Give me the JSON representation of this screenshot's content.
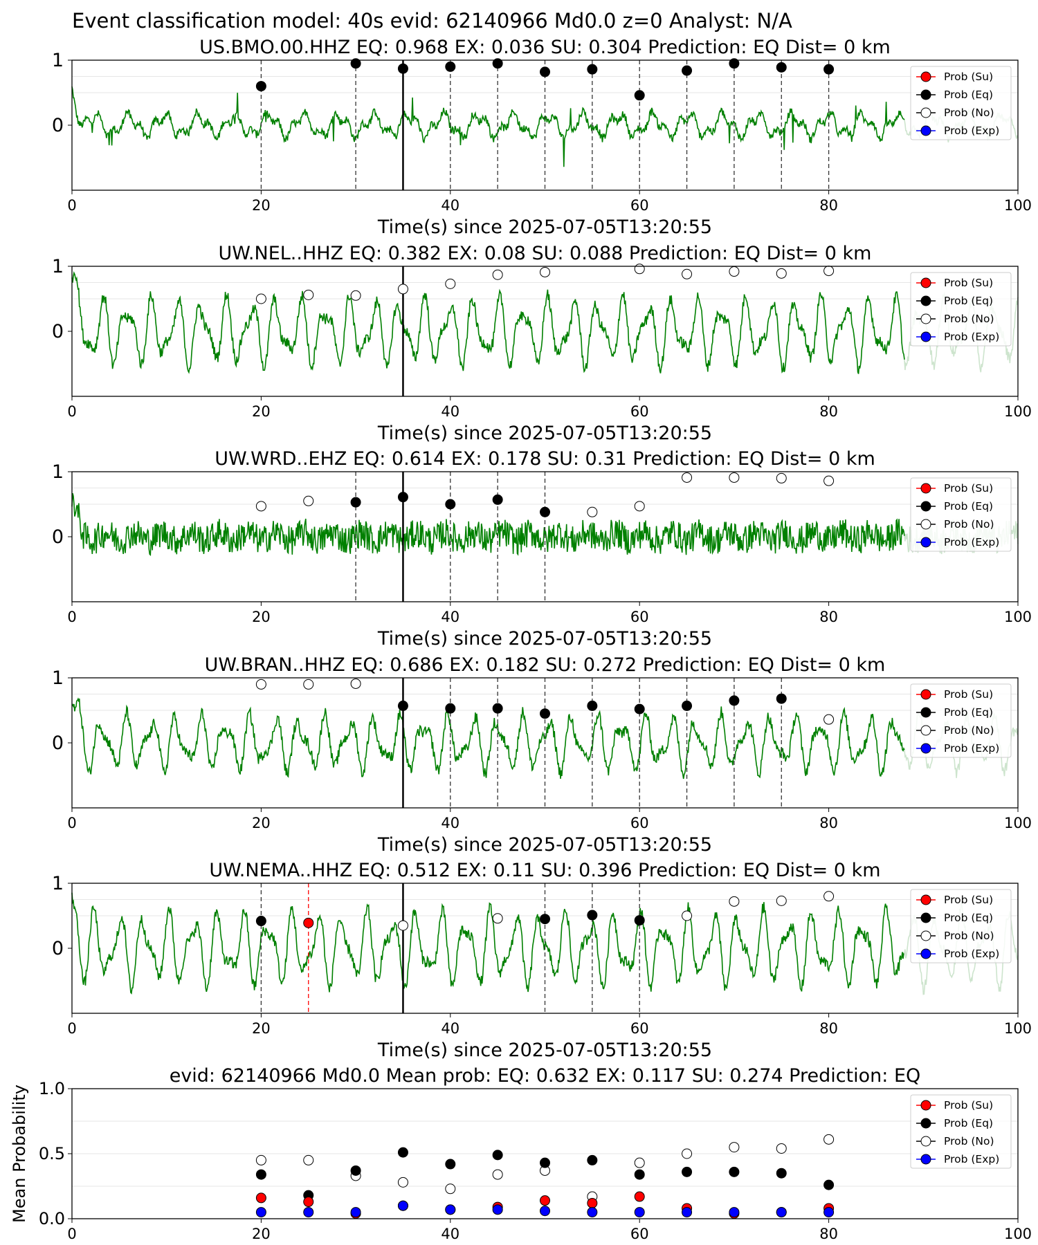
{
  "suptitle": "Event classification model: 40s evid: 62140966 Md0.0 z=0 Analyst: N/A",
  "colors": {
    "waveform": "#008000",
    "waveform_faded": "#cde4cd",
    "su": "#ff0000",
    "eq": "#000000",
    "exp": "#0000ff",
    "no_fill": "#ffffff"
  },
  "legend": [
    "Prob (Su)",
    "Prob (Eq)",
    "Prob (No)",
    "Prob (Exp)"
  ],
  "chart_data": [
    {
      "type": "line",
      "title": "US.BMO.00.HHZ   EQ: 0.968  EX: 0.036  SU: 0.304   Prediction: EQ    Dist= 0 km",
      "xlabel": "Time(s) since 2025-07-05T13:20:55",
      "xlim": [
        0,
        100
      ],
      "xticks": [
        "0",
        "20",
        "40",
        "60",
        "80",
        "100"
      ],
      "yticks": [
        "0",
        "1"
      ],
      "origin_line": 35,
      "waveform": {
        "amp": 0.28,
        "style": "spiky"
      },
      "vlines": [
        {
          "x": 20,
          "c": "eq"
        },
        {
          "x": 30,
          "c": "eq"
        },
        {
          "x": 40,
          "c": "eq"
        },
        {
          "x": 45,
          "c": "eq"
        },
        {
          "x": 50,
          "c": "eq"
        },
        {
          "x": 55,
          "c": "eq"
        },
        {
          "x": 60,
          "c": "eq"
        },
        {
          "x": 65,
          "c": "eq"
        },
        {
          "x": 70,
          "c": "eq"
        },
        {
          "x": 75,
          "c": "eq"
        },
        {
          "x": 80,
          "c": "eq"
        }
      ],
      "points": [
        {
          "x": 20,
          "y": 0.6,
          "c": "eq"
        },
        {
          "x": 30,
          "y": 0.95,
          "c": "eq"
        },
        {
          "x": 35,
          "y": 0.87,
          "c": "eq"
        },
        {
          "x": 40,
          "y": 0.9,
          "c": "eq"
        },
        {
          "x": 45,
          "y": 0.95,
          "c": "eq"
        },
        {
          "x": 50,
          "y": 0.82,
          "c": "eq"
        },
        {
          "x": 55,
          "y": 0.86,
          "c": "eq"
        },
        {
          "x": 60,
          "y": 0.46,
          "c": "eq"
        },
        {
          "x": 65,
          "y": 0.84,
          "c": "eq"
        },
        {
          "x": 70,
          "y": 0.95,
          "c": "eq"
        },
        {
          "x": 75,
          "y": 0.89,
          "c": "eq"
        },
        {
          "x": 80,
          "y": 0.86,
          "c": "eq"
        }
      ]
    },
    {
      "type": "line",
      "title": "UW.NEL..HHZ   EQ: 0.382  EX: 0.08  SU: 0.088   Prediction: EQ    Dist= 0 km",
      "xlabel": "Time(s) since 2025-07-05T13:20:55",
      "xlim": [
        0,
        100
      ],
      "xticks": [
        "0",
        "20",
        "40",
        "60",
        "80",
        "100"
      ],
      "yticks": [
        "0",
        "1"
      ],
      "origin_line": 35,
      "waveform": {
        "amp": 0.55,
        "style": "oscillating"
      },
      "vlines": [],
      "points": [
        {
          "x": 20,
          "y": 0.5,
          "c": "no"
        },
        {
          "x": 25,
          "y": 0.56,
          "c": "no"
        },
        {
          "x": 30,
          "y": 0.55,
          "c": "no"
        },
        {
          "x": 35,
          "y": 0.65,
          "c": "no"
        },
        {
          "x": 40,
          "y": 0.73,
          "c": "no"
        },
        {
          "x": 45,
          "y": 0.87,
          "c": "no"
        },
        {
          "x": 50,
          "y": 0.91,
          "c": "no"
        },
        {
          "x": 60,
          "y": 0.96,
          "c": "no"
        },
        {
          "x": 65,
          "y": 0.88,
          "c": "no"
        },
        {
          "x": 70,
          "y": 0.92,
          "c": "no"
        },
        {
          "x": 75,
          "y": 0.89,
          "c": "no"
        },
        {
          "x": 80,
          "y": 0.93,
          "c": "no"
        }
      ]
    },
    {
      "type": "line",
      "title": "UW.WRD..EHZ   EQ: 0.614  EX: 0.178  SU: 0.31   Prediction: EQ    Dist= 0 km",
      "xlabel": "Time(s) since 2025-07-05T13:20:55",
      "xlim": [
        0,
        100
      ],
      "xticks": [
        "0",
        "20",
        "40",
        "60",
        "80",
        "100"
      ],
      "yticks": [
        "0",
        "1"
      ],
      "origin_line": 35,
      "waveform": {
        "amp": 0.3,
        "style": "noisy"
      },
      "vlines": [
        {
          "x": 30,
          "c": "eq"
        },
        {
          "x": 40,
          "c": "eq"
        },
        {
          "x": 45,
          "c": "eq"
        },
        {
          "x": 50,
          "c": "eq"
        }
      ],
      "points": [
        {
          "x": 20,
          "y": 0.47,
          "c": "no"
        },
        {
          "x": 25,
          "y": 0.55,
          "c": "no"
        },
        {
          "x": 30,
          "y": 0.53,
          "c": "eq"
        },
        {
          "x": 35,
          "y": 0.61,
          "c": "eq"
        },
        {
          "x": 40,
          "y": 0.5,
          "c": "eq"
        },
        {
          "x": 45,
          "y": 0.57,
          "c": "eq"
        },
        {
          "x": 50,
          "y": 0.38,
          "c": "eq"
        },
        {
          "x": 55,
          "y": 0.38,
          "c": "no"
        },
        {
          "x": 60,
          "y": 0.47,
          "c": "no"
        },
        {
          "x": 65,
          "y": 0.91,
          "c": "no"
        },
        {
          "x": 70,
          "y": 0.91,
          "c": "no"
        },
        {
          "x": 75,
          "y": 0.9,
          "c": "no"
        },
        {
          "x": 80,
          "y": 0.86,
          "c": "no"
        }
      ]
    },
    {
      "type": "line",
      "title": "UW.BRAN..HHZ   EQ: 0.686  EX: 0.182  SU: 0.272   Prediction: EQ    Dist= 0 km",
      "xlabel": "Time(s) since 2025-07-05T13:20:55",
      "xlim": [
        0,
        100
      ],
      "xticks": [
        "0",
        "20",
        "40",
        "60",
        "80",
        "100"
      ],
      "yticks": [
        "0",
        "1"
      ],
      "origin_line": 35,
      "waveform": {
        "amp": 0.45,
        "style": "oscillating"
      },
      "vlines": [
        {
          "x": 40,
          "c": "eq"
        },
        {
          "x": 45,
          "c": "eq"
        },
        {
          "x": 50,
          "c": "eq"
        },
        {
          "x": 55,
          "c": "eq"
        },
        {
          "x": 60,
          "c": "eq"
        },
        {
          "x": 65,
          "c": "eq"
        },
        {
          "x": 70,
          "c": "eq"
        },
        {
          "x": 75,
          "c": "eq"
        }
      ],
      "points": [
        {
          "x": 20,
          "y": 0.9,
          "c": "no"
        },
        {
          "x": 25,
          "y": 0.9,
          "c": "no"
        },
        {
          "x": 30,
          "y": 0.91,
          "c": "no"
        },
        {
          "x": 35,
          "y": 0.57,
          "c": "eq"
        },
        {
          "x": 40,
          "y": 0.53,
          "c": "eq"
        },
        {
          "x": 45,
          "y": 0.53,
          "c": "eq"
        },
        {
          "x": 50,
          "y": 0.45,
          "c": "eq"
        },
        {
          "x": 55,
          "y": 0.57,
          "c": "eq"
        },
        {
          "x": 60,
          "y": 0.52,
          "c": "eq"
        },
        {
          "x": 65,
          "y": 0.57,
          "c": "eq"
        },
        {
          "x": 70,
          "y": 0.65,
          "c": "eq"
        },
        {
          "x": 75,
          "y": 0.68,
          "c": "eq"
        },
        {
          "x": 80,
          "y": 0.36,
          "c": "no"
        }
      ]
    },
    {
      "type": "line",
      "title": "UW.NEMA..HHZ   EQ: 0.512  EX: 0.11  SU: 0.396   Prediction: EQ    Dist= 0 km",
      "xlabel": "Time(s) since 2025-07-05T13:20:55",
      "xlim": [
        0,
        100
      ],
      "xticks": [
        "0",
        "20",
        "40",
        "60",
        "80",
        "100"
      ],
      "yticks": [
        "0",
        "1"
      ],
      "origin_line": 35,
      "waveform": {
        "amp": 0.6,
        "style": "oscillating"
      },
      "vlines": [
        {
          "x": 20,
          "c": "eq"
        },
        {
          "x": 25,
          "c": "su"
        },
        {
          "x": 50,
          "c": "eq"
        },
        {
          "x": 55,
          "c": "eq"
        },
        {
          "x": 60,
          "c": "eq"
        }
      ],
      "points": [
        {
          "x": 20,
          "y": 0.42,
          "c": "eq"
        },
        {
          "x": 25,
          "y": 0.39,
          "c": "su"
        },
        {
          "x": 35,
          "y": 0.35,
          "c": "no"
        },
        {
          "x": 45,
          "y": 0.46,
          "c": "no"
        },
        {
          "x": 50,
          "y": 0.45,
          "c": "eq"
        },
        {
          "x": 55,
          "y": 0.51,
          "c": "eq"
        },
        {
          "x": 60,
          "y": 0.43,
          "c": "eq"
        },
        {
          "x": 65,
          "y": 0.5,
          "c": "no"
        },
        {
          "x": 70,
          "y": 0.72,
          "c": "no"
        },
        {
          "x": 75,
          "y": 0.73,
          "c": "no"
        },
        {
          "x": 80,
          "y": 0.8,
          "c": "no"
        }
      ]
    },
    {
      "type": "scatter",
      "title": "evid: 62140966  Md0.0   Mean prob:   EQ: 0.632  EX: 0.117  SU: 0.274   Prediction: EQ",
      "ylabel": "Mean Probability",
      "xlim": [
        0,
        100
      ],
      "ylim": [
        0,
        1
      ],
      "xticks": [
        "0",
        "20",
        "40",
        "60",
        "80",
        "100"
      ],
      "yticks": [
        "0.0",
        "0.5",
        "1.0"
      ],
      "series": [
        {
          "name": "Prob (No)",
          "c": "no",
          "x": [
            20,
            25,
            30,
            35,
            40,
            45,
            50,
            55,
            60,
            65,
            70,
            75,
            80
          ],
          "y": [
            0.45,
            0.45,
            0.33,
            0.28,
            0.23,
            0.34,
            0.37,
            0.17,
            0.43,
            0.5,
            0.55,
            0.54,
            0.61
          ]
        },
        {
          "name": "Prob (Eq)",
          "c": "eq",
          "x": [
            20,
            25,
            30,
            35,
            40,
            45,
            50,
            55,
            60,
            65,
            70,
            75,
            80
          ],
          "y": [
            0.34,
            0.18,
            0.37,
            0.51,
            0.42,
            0.49,
            0.43,
            0.45,
            0.34,
            0.36,
            0.36,
            0.35,
            0.26
          ]
        },
        {
          "name": "Prob (Su)",
          "c": "su",
          "x": [
            20,
            25,
            30,
            35,
            40,
            45,
            50,
            55,
            60,
            65,
            70,
            75,
            80
          ],
          "y": [
            0.16,
            0.13,
            0.04,
            0.1,
            0.07,
            0.09,
            0.14,
            0.12,
            0.17,
            0.08,
            0.04,
            0.05,
            0.08
          ]
        },
        {
          "name": "Prob (Exp)",
          "c": "exp",
          "x": [
            20,
            25,
            30,
            35,
            40,
            45,
            50,
            55,
            60,
            65,
            70,
            75,
            80
          ],
          "y": [
            0.05,
            0.05,
            0.05,
            0.1,
            0.07,
            0.07,
            0.06,
            0.05,
            0.05,
            0.05,
            0.05,
            0.05,
            0.05
          ]
        }
      ]
    }
  ]
}
